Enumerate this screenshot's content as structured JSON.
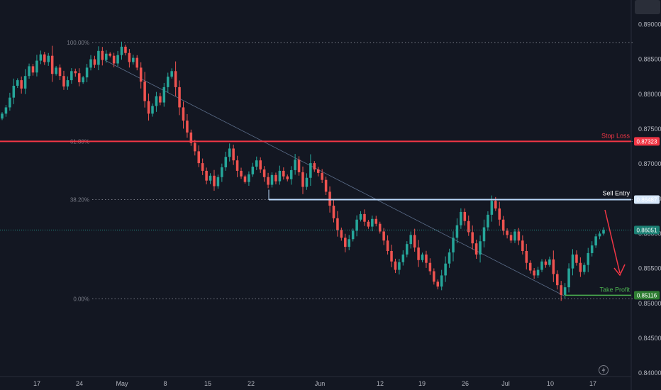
{
  "chart_data": {
    "type": "candlestick",
    "symbol_pair_hint": "",
    "ylim": [
      0.8395,
      0.8935
    ],
    "y_ticks": [
      "0.89000",
      "0.88500",
      "0.88000",
      "0.87500",
      "0.87000",
      "0.86500",
      "0.86000",
      "0.85500",
      "0.85000",
      "0.84500",
      "0.84000"
    ],
    "x_ticks": [
      "17",
      "24",
      "May",
      "8",
      "15",
      "22",
      "Jun",
      "12",
      "19",
      "26",
      "Jul",
      "10",
      "17"
    ],
    "series": [
      {
        "ohlc_closes": [
          0.8772,
          0.8781,
          0.8795,
          0.8812,
          0.882,
          0.8808,
          0.8826,
          0.884,
          0.8831,
          0.8848,
          0.8857,
          0.8846,
          0.8855,
          0.8829,
          0.8838,
          0.8826,
          0.8811,
          0.882,
          0.8833,
          0.883,
          0.8817,
          0.8824,
          0.8838,
          0.885,
          0.8842,
          0.8862,
          0.8849,
          0.8858,
          0.8855,
          0.8844,
          0.8856,
          0.8868,
          0.8859,
          0.8846,
          0.8852,
          0.8838,
          0.8818,
          0.879,
          0.8772,
          0.8783,
          0.8797,
          0.8788,
          0.881,
          0.8825,
          0.8833,
          0.881,
          0.8781,
          0.8762,
          0.8745,
          0.873,
          0.8718,
          0.8701,
          0.869,
          0.8676,
          0.8683,
          0.8668,
          0.8681,
          0.8695,
          0.871,
          0.8722,
          0.8705,
          0.869,
          0.8682,
          0.8674,
          0.8685,
          0.8696,
          0.8705,
          0.8692,
          0.8681,
          0.867,
          0.8684,
          0.8675,
          0.869,
          0.8682,
          0.8678,
          0.8691,
          0.8706,
          0.8688,
          0.8667,
          0.868,
          0.8701,
          0.8692,
          0.8687,
          0.8677,
          0.866,
          0.864,
          0.8622,
          0.8605,
          0.8594,
          0.8581,
          0.8592,
          0.8604,
          0.862,
          0.8628,
          0.8617,
          0.861,
          0.8621,
          0.8614,
          0.8603,
          0.859,
          0.8575,
          0.856,
          0.8548,
          0.8559,
          0.857,
          0.8585,
          0.8598,
          0.858,
          0.8562,
          0.857,
          0.8558,
          0.8546,
          0.8531,
          0.8524,
          0.854,
          0.8557,
          0.8573,
          0.8594,
          0.8612,
          0.8631,
          0.8618,
          0.8602,
          0.8586,
          0.857,
          0.8589,
          0.8609,
          0.8627,
          0.8647,
          0.8636,
          0.862,
          0.8604,
          0.8598,
          0.859,
          0.8603,
          0.859,
          0.8575,
          0.8558,
          0.8547,
          0.854,
          0.8548,
          0.856,
          0.8555,
          0.8563,
          0.8542,
          0.8526,
          0.8512,
          0.8523,
          0.855,
          0.857,
          0.8558,
          0.8545,
          0.8555,
          0.8572,
          0.8583,
          0.8596,
          0.86,
          0.8605
        ]
      }
    ],
    "levels": [
      {
        "name": "Stop Loss",
        "value": "0.87323"
      },
      {
        "name": "Sell Entry",
        "value": "0.86487"
      },
      {
        "name": "Take Profit",
        "value": "0.85116"
      },
      {
        "name": "current",
        "value": "0.86051"
      }
    ],
    "fib_levels": [
      {
        "label": "100.00%",
        "value": 0.88741
      },
      {
        "label": "61.80%",
        "value": 0.87323
      },
      {
        "label": "38.20%",
        "value": 0.86487
      },
      {
        "label": "0.00%",
        "value": 0.85063
      }
    ],
    "colors": {
      "up": "#26a69a",
      "down": "#ef5350",
      "stop": "#f23645",
      "entry": "#bbd9fb",
      "tp": "#4caf50",
      "bg": "#131722"
    },
    "grid": false
  }
}
